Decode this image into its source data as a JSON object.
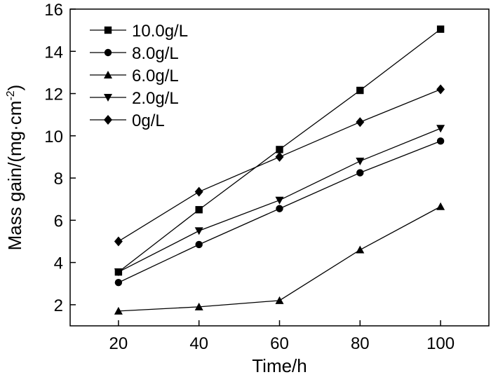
{
  "chart_data": {
    "type": "line",
    "title": "",
    "xlabel": "Time/h",
    "ylabel_main": "Mass gain/(mg·cm",
    "ylabel_sup": "-2",
    "ylabel_tail": ")",
    "xlim": [
      8,
      112
    ],
    "ylim": [
      1,
      16
    ],
    "xticks": [
      20,
      40,
      60,
      80,
      100
    ],
    "yticks": [
      2,
      4,
      6,
      8,
      10,
      12,
      14,
      16
    ],
    "grid": false,
    "legend_position": "top-left",
    "x": [
      20,
      40,
      60,
      80,
      100
    ],
    "series": [
      {
        "name": "10.0g/L",
        "marker": "square",
        "values": [
          3.55,
          6.5,
          9.35,
          12.15,
          15.05
        ]
      },
      {
        "name": "8.0g/L",
        "marker": "circle",
        "values": [
          3.05,
          4.85,
          6.55,
          8.25,
          9.75
        ]
      },
      {
        "name": "6.0g/L",
        "marker": "triangle-up",
        "values": [
          1.7,
          1.9,
          2.2,
          4.6,
          6.65
        ]
      },
      {
        "name": "2.0g/L",
        "marker": "triangle-down",
        "values": [
          3.55,
          5.5,
          6.95,
          8.8,
          10.35
        ]
      },
      {
        "name": "0g/L",
        "marker": "diamond",
        "values": [
          5.0,
          7.35,
          9.0,
          10.65,
          12.2
        ]
      }
    ]
  }
}
